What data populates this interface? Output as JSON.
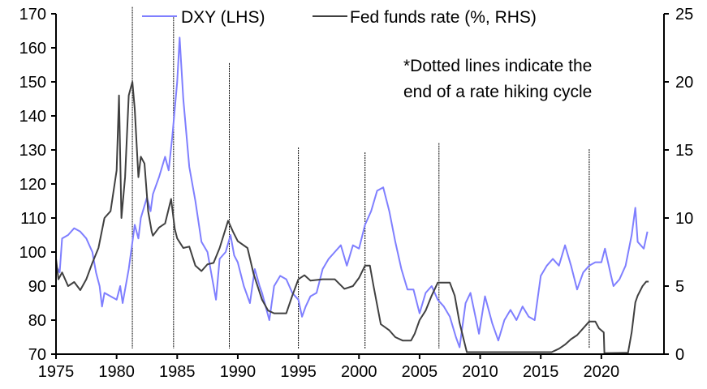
{
  "chart_data": {
    "type": "line",
    "title": "",
    "legend": {
      "placement": "top",
      "entries": [
        "DXY (LHS)",
        "Fed funds rate (%, RHS)"
      ]
    },
    "annotation": [
      "*Dotted lines indicate the",
      "end of a rate hiking cycle"
    ],
    "x_axis": {
      "range": [
        1975,
        2025
      ],
      "ticks": [
        "1975",
        "1980",
        "1985",
        "1990",
        "1995",
        "2000",
        "2005",
        "2010",
        "2015",
        "2020"
      ]
    },
    "y_left": {
      "range": [
        70,
        170
      ],
      "ticks": [
        "70",
        "80",
        "90",
        "100",
        "110",
        "120",
        "130",
        "140",
        "150",
        "160",
        "170"
      ]
    },
    "y_right": {
      "range": [
        0,
        25
      ],
      "ticks": [
        "0",
        "5",
        "10",
        "15",
        "20",
        "25"
      ]
    },
    "grid": false,
    "colors": {
      "dxy": "#7f7fff",
      "fed": "#404040",
      "dotted": "#000000"
    },
    "series": [
      {
        "name": "DXY (LHS)",
        "axis": "left",
        "points": [
          [
            1975.0,
            96
          ],
          [
            1975.3,
            94
          ],
          [
            1975.5,
            104
          ],
          [
            1976.0,
            105
          ],
          [
            1976.5,
            107
          ],
          [
            1977.0,
            106
          ],
          [
            1977.5,
            104
          ],
          [
            1978.0,
            100
          ],
          [
            1978.3,
            94
          ],
          [
            1978.6,
            90
          ],
          [
            1978.8,
            84
          ],
          [
            1979.0,
            88
          ],
          [
            1979.5,
            87
          ],
          [
            1980.0,
            86
          ],
          [
            1980.3,
            90
          ],
          [
            1980.5,
            85
          ],
          [
            1981.0,
            95
          ],
          [
            1981.5,
            108
          ],
          [
            1981.8,
            104
          ],
          [
            1982.0,
            110
          ],
          [
            1982.5,
            116
          ],
          [
            1982.8,
            112
          ],
          [
            1983.0,
            117
          ],
          [
            1983.5,
            122
          ],
          [
            1984.0,
            128
          ],
          [
            1984.3,
            124
          ],
          [
            1984.6,
            134
          ],
          [
            1985.0,
            150
          ],
          [
            1985.2,
            163
          ],
          [
            1985.5,
            145
          ],
          [
            1986.0,
            125
          ],
          [
            1986.5,
            115
          ],
          [
            1987.0,
            103
          ],
          [
            1987.5,
            100
          ],
          [
            1988.0,
            90
          ],
          [
            1988.2,
            86
          ],
          [
            1988.5,
            98
          ],
          [
            1989.0,
            100
          ],
          [
            1989.4,
            105
          ],
          [
            1989.7,
            99
          ],
          [
            1990.0,
            97
          ],
          [
            1990.5,
            90
          ],
          [
            1991.0,
            85
          ],
          [
            1991.4,
            95
          ],
          [
            1991.8,
            90
          ],
          [
            1992.0,
            88
          ],
          [
            1992.6,
            80
          ],
          [
            1993.0,
            90
          ],
          [
            1993.5,
            93
          ],
          [
            1994.0,
            92
          ],
          [
            1994.5,
            88
          ],
          [
            1995.0,
            86
          ],
          [
            1995.3,
            81
          ],
          [
            1995.6,
            84
          ],
          [
            1996.0,
            87
          ],
          [
            1996.5,
            88
          ],
          [
            1997.0,
            95
          ],
          [
            1997.5,
            98
          ],
          [
            1998.0,
            100
          ],
          [
            1998.5,
            102
          ],
          [
            1999.0,
            96
          ],
          [
            1999.5,
            102
          ],
          [
            2000.0,
            101
          ],
          [
            2000.5,
            108
          ],
          [
            2001.0,
            112
          ],
          [
            2001.5,
            118
          ],
          [
            2002.0,
            119
          ],
          [
            2002.5,
            112
          ],
          [
            2003.0,
            103
          ],
          [
            2003.5,
            95
          ],
          [
            2004.0,
            89
          ],
          [
            2004.5,
            89
          ],
          [
            2005.0,
            82
          ],
          [
            2005.5,
            88
          ],
          [
            2006.0,
            90
          ],
          [
            2006.5,
            86
          ],
          [
            2007.0,
            84
          ],
          [
            2007.5,
            81
          ],
          [
            2008.0,
            75
          ],
          [
            2008.3,
            72
          ],
          [
            2008.8,
            85
          ],
          [
            2009.2,
            88
          ],
          [
            2009.9,
            76
          ],
          [
            2010.4,
            87
          ],
          [
            2011.0,
            79
          ],
          [
            2011.5,
            74
          ],
          [
            2012.0,
            80
          ],
          [
            2012.5,
            83
          ],
          [
            2013.0,
            80
          ],
          [
            2013.5,
            84
          ],
          [
            2014.0,
            81
          ],
          [
            2014.5,
            80
          ],
          [
            2015.0,
            93
          ],
          [
            2015.5,
            96
          ],
          [
            2016.0,
            98
          ],
          [
            2016.5,
            96
          ],
          [
            2017.0,
            102
          ],
          [
            2017.5,
            96
          ],
          [
            2018.0,
            89
          ],
          [
            2018.5,
            94
          ],
          [
            2019.0,
            96
          ],
          [
            2019.5,
            97
          ],
          [
            2020.0,
            97
          ],
          [
            2020.3,
            101
          ],
          [
            2020.8,
            93
          ],
          [
            2021.0,
            90
          ],
          [
            2021.5,
            92
          ],
          [
            2022.0,
            96
          ],
          [
            2022.5,
            105
          ],
          [
            2022.8,
            113
          ],
          [
            2023.0,
            103
          ],
          [
            2023.5,
            101
          ],
          [
            2023.8,
            106
          ]
        ]
      },
      {
        "name": "Fed funds rate (%, RHS)",
        "axis": "right",
        "points": [
          [
            1975.0,
            7
          ],
          [
            1975.2,
            5.5
          ],
          [
            1975.5,
            6
          ],
          [
            1976.0,
            5
          ],
          [
            1976.5,
            5.3
          ],
          [
            1977.0,
            4.7
          ],
          [
            1977.5,
            5.5
          ],
          [
            1978.0,
            6.7
          ],
          [
            1978.5,
            7.8
          ],
          [
            1979.0,
            10
          ],
          [
            1979.5,
            10.5
          ],
          [
            1980.0,
            13.5
          ],
          [
            1980.2,
            19
          ],
          [
            1980.4,
            10
          ],
          [
            1980.7,
            13
          ],
          [
            1981.0,
            19
          ],
          [
            1981.3,
            20
          ],
          [
            1981.5,
            18
          ],
          [
            1981.8,
            13
          ],
          [
            1982.0,
            14.5
          ],
          [
            1982.3,
            14
          ],
          [
            1982.6,
            10.5
          ],
          [
            1982.9,
            9
          ],
          [
            1983.0,
            8.7
          ],
          [
            1983.5,
            9.3
          ],
          [
            1984.0,
            9.6
          ],
          [
            1984.5,
            11.4
          ],
          [
            1984.8,
            9.2
          ],
          [
            1985.0,
            8.5
          ],
          [
            1985.5,
            7.8
          ],
          [
            1986.0,
            7.9
          ],
          [
            1986.5,
            6.5
          ],
          [
            1987.0,
            6.1
          ],
          [
            1987.5,
            6.6
          ],
          [
            1988.0,
            6.7
          ],
          [
            1988.5,
            7.8
          ],
          [
            1989.2,
            9.8
          ],
          [
            1989.6,
            9
          ],
          [
            1990.0,
            8.3
          ],
          [
            1990.8,
            7.8
          ],
          [
            1991.3,
            5.9
          ],
          [
            1992.0,
            4
          ],
          [
            1992.5,
            3.2
          ],
          [
            1993.0,
            3
          ],
          [
            1994.0,
            3
          ],
          [
            1994.5,
            4.3
          ],
          [
            1995.0,
            5.5
          ],
          [
            1995.5,
            5.8
          ],
          [
            1996.0,
            5.4
          ],
          [
            1997.0,
            5.5
          ],
          [
            1998.0,
            5.5
          ],
          [
            1998.8,
            4.8
          ],
          [
            1999.5,
            5
          ],
          [
            2000.0,
            5.6
          ],
          [
            2000.5,
            6.5
          ],
          [
            2000.9,
            6.5
          ],
          [
            2001.2,
            5
          ],
          [
            2001.8,
            2.2
          ],
          [
            2002.5,
            1.75
          ],
          [
            2003.0,
            1.25
          ],
          [
            2003.6,
            1
          ],
          [
            2004.3,
            1
          ],
          [
            2004.6,
            1.5
          ],
          [
            2005.0,
            2.5
          ],
          [
            2005.5,
            3.2
          ],
          [
            2006.0,
            4.3
          ],
          [
            2006.5,
            5.25
          ],
          [
            2007.5,
            5.25
          ],
          [
            2007.9,
            4.3
          ],
          [
            2008.3,
            2.3
          ],
          [
            2008.9,
            0.15
          ],
          [
            2015.9,
            0.15
          ],
          [
            2016.5,
            0.4
          ],
          [
            2017.0,
            0.7
          ],
          [
            2017.5,
            1.1
          ],
          [
            2018.0,
            1.4
          ],
          [
            2018.5,
            1.9
          ],
          [
            2019.0,
            2.4
          ],
          [
            2019.5,
            2.4
          ],
          [
            2019.8,
            1.9
          ],
          [
            2020.2,
            1.6
          ],
          [
            2020.25,
            0.08
          ],
          [
            2022.2,
            0.1
          ],
          [
            2022.5,
            1.6
          ],
          [
            2022.8,
            3.8
          ],
          [
            2023.0,
            4.3
          ],
          [
            2023.4,
            5
          ],
          [
            2023.7,
            5.33
          ],
          [
            2023.9,
            5.33
          ]
        ]
      }
    ],
    "hiking_cycle_end_lines": [
      {
        "year": 1981.3,
        "top_lhs": 172
      },
      {
        "year": 1984.7,
        "top_lhs": 169
      },
      {
        "year": 1989.3,
        "top_lhs": 155.5
      },
      {
        "year": 1995.0,
        "top_lhs": 130.7
      },
      {
        "year": 2000.5,
        "top_lhs": 129.3
      },
      {
        "year": 2006.6,
        "top_lhs": 132
      },
      {
        "year": 2019.0,
        "top_lhs": 130.2
      }
    ]
  }
}
